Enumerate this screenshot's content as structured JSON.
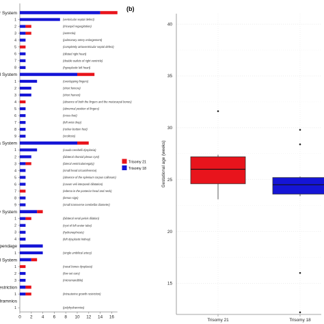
{
  "panel_labels": {
    "b": "(b)"
  },
  "colors": {
    "trisomy21": "#e8141c",
    "trisomy18": "#1515d6",
    "axis": "#888888"
  },
  "chart_data": [
    {
      "type": "bar",
      "orientation": "horizontal",
      "stacked": true,
      "title": "",
      "xlabel": "",
      "xticks": [
        0,
        2,
        4,
        6,
        8,
        10,
        12,
        14,
        16
      ],
      "xlim": [
        0,
        17
      ],
      "legend": {
        "placement": "right",
        "entries": [
          "Trisomy 21",
          "Trisomy 18"
        ]
      },
      "rows": [
        {
          "kind": "system",
          "label": "ar System",
          "t18": 14,
          "t21": 3
        },
        {
          "kind": "item",
          "label": "1",
          "note": "(ventricular septal defect)",
          "t18": 7,
          "t21": 0
        },
        {
          "kind": "item",
          "label": "2",
          "note": "(tricuspid regurgitation)",
          "t18": 1,
          "t21": 1
        },
        {
          "kind": "item",
          "label": "3",
          "note": "(aortectia)",
          "t18": 1,
          "t21": 1
        },
        {
          "kind": "item",
          "label": "4",
          "note": "(pulmonary artery enlargement)",
          "t18": 1,
          "t21": 0
        },
        {
          "kind": "item",
          "label": "5",
          "note": "(completely atrioventricular septal defect)",
          "t18": 0,
          "t21": 1
        },
        {
          "kind": "item",
          "label": "6",
          "note": "(dilated right heart)",
          "t18": 1,
          "t21": 0
        },
        {
          "kind": "item",
          "label": "7",
          "note": "(double outlets of right ventricle)",
          "t18": 1,
          "t21": 0
        },
        {
          "kind": "item",
          "label": "8",
          "note": "(hypoplastic left heart)",
          "t18": 1,
          "t21": 0
        },
        {
          "kind": "system",
          "label": "al System",
          "t18": 10,
          "t21": 3
        },
        {
          "kind": "item",
          "label": "1",
          "note": "(overlapping fingers)",
          "t18": 3,
          "t21": 0
        },
        {
          "kind": "item",
          "label": "2",
          "note": "(short femora)",
          "t18": 2,
          "t21": 0
        },
        {
          "kind": "item",
          "label": "3",
          "note": "(short humeri)",
          "t18": 2,
          "t21": 0
        },
        {
          "kind": "item",
          "label": "4",
          "note": "(absence of both the fingers and the metacarpal bones)",
          "t18": 0,
          "t21": 1
        },
        {
          "kind": "item",
          "label": "5",
          "note": "(abnormal position of fingers)",
          "t18": 1,
          "t21": 0
        },
        {
          "kind": "item",
          "label": "6",
          "note": "(cross-foot)",
          "t18": 1,
          "t21": 0
        },
        {
          "kind": "item",
          "label": "7",
          "note": "(left wrist drop)",
          "t18": 1,
          "t21": 0
        },
        {
          "kind": "item",
          "label": "8",
          "note": "(rocker-bottom foot)",
          "t18": 1,
          "t21": 0
        },
        {
          "kind": "item",
          "label": "9",
          "note": "(scoliosis)",
          "t18": 1,
          "t21": 0
        },
        {
          "kind": "system",
          "label": "us System",
          "t18": 10,
          "t21": 2
        },
        {
          "kind": "item",
          "label": "1",
          "note": "(cauda cerebelli dysplasia)",
          "t18": 3,
          "t21": 0
        },
        {
          "kind": "item",
          "label": "2",
          "note": "(bilateral choroid plexus cyst)",
          "t18": 2,
          "t21": 0
        },
        {
          "kind": "item",
          "label": "3",
          "note": "(lateral ventriculomegaly)",
          "t18": 1,
          "t21": 1
        },
        {
          "kind": "item",
          "label": "4",
          "note": "(small head circumference)",
          "t18": 1,
          "t21": 0
        },
        {
          "kind": "item",
          "label": "5",
          "note": "(absence of the splenium corpus callosum)",
          "t18": 1,
          "t21": 0
        },
        {
          "kind": "item",
          "label": "6",
          "note": "(cavum veli interpositi dilatation)",
          "t18": 1,
          "t21": 0
        },
        {
          "kind": "item",
          "label": "7",
          "note": "(edema in the posterior head and neck)",
          "t18": 0,
          "t21": 1
        },
        {
          "kind": "item",
          "label": "8",
          "note": "(lemon sign)",
          "t18": 1,
          "t21": 0
        },
        {
          "kind": "item",
          "label": "9",
          "note": "(small transverse cerebellar diameter)",
          "t18": 1,
          "t21": 0
        },
        {
          "kind": "system",
          "label": "ry System",
          "t18": 3,
          "t21": 1
        },
        {
          "kind": "item",
          "label": "1",
          "note": "(bilateral renal pelvis dilation)",
          "t18": 1,
          "t21": 1
        },
        {
          "kind": "item",
          "label": "2",
          "note": "(cyst of left ureter tube)",
          "t18": 1,
          "t21": 0
        },
        {
          "kind": "item",
          "label": "3",
          "note": "(hydronephrosis)",
          "t18": 1,
          "t21": 0
        },
        {
          "kind": "item",
          "label": "4",
          "note": "(left dysplastic kidney)",
          "t18": 1,
          "t21": 0
        },
        {
          "kind": "system",
          "label": "ppendage",
          "t18": 4,
          "t21": 0
        },
        {
          "kind": "item",
          "label": "1",
          "note": "(single umbilical artery)",
          "t18": 4,
          "t21": 0
        },
        {
          "kind": "system",
          "label": "al System",
          "t18": 2,
          "t21": 1
        },
        {
          "kind": "item",
          "label": "1",
          "note": "(nasal bones dysplasia)",
          "t18": 0,
          "t21": 1
        },
        {
          "kind": "item",
          "label": "2",
          "note": "(low-set ears)",
          "t18": 1,
          "t21": 0
        },
        {
          "kind": "item",
          "label": "3",
          "note": "(micromandible)",
          "t18": 1,
          "t21": 0
        },
        {
          "kind": "system",
          "label": "Restriction",
          "t18": 1,
          "t21": 1
        },
        {
          "kind": "item",
          "label": "1",
          "note": "(intrauterine growth restriction)",
          "t18": 1,
          "t21": 1
        },
        {
          "kind": "system",
          "label": "dramnios",
          "t18": 0,
          "t21": 0
        },
        {
          "kind": "item",
          "label": "1",
          "note": "(polyhydramnios)",
          "t18": 0,
          "t21": 0
        }
      ]
    },
    {
      "type": "box",
      "title": "",
      "ylabel": "Gestational age (weeks)",
      "yticks": [
        15,
        20,
        25,
        30,
        35,
        40
      ],
      "ylim": [
        12,
        41
      ],
      "grid": true,
      "categories": [
        "Trisomy 21",
        "Trisomy 18"
      ],
      "boxes": [
        {
          "name": "Trisomy 21",
          "q1": 24.6,
          "median": 26.0,
          "q3": 27.2,
          "whisker_low": 23.1,
          "whisker_high": 27.4,
          "outliers": [
            31.6
          ]
        },
        {
          "name": "Trisomy 18",
          "q1": 23.6,
          "median": 24.5,
          "q3": 25.2,
          "whisker_low": 23.4,
          "whisker_high": 25.3,
          "outliers": [
            29.8,
            28.4,
            16.0,
            12.2
          ]
        }
      ]
    }
  ]
}
